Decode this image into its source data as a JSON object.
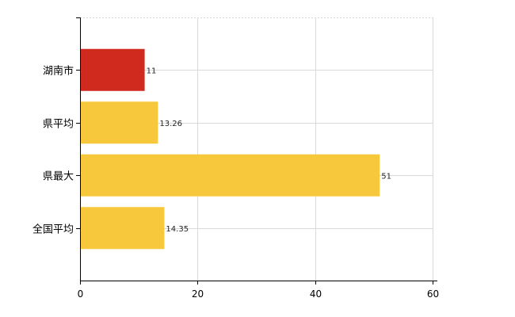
{
  "chart_data": {
    "type": "bar",
    "orientation": "horizontal",
    "categories": [
      "湖南市",
      "県平均",
      "県最大",
      "全国平均"
    ],
    "values": [
      11,
      13.26,
      51,
      14.35
    ],
    "value_labels": [
      "11",
      "13.26",
      "51",
      "14.35"
    ],
    "xlim": [
      0,
      60
    ],
    "x_ticks": [
      0,
      20,
      40,
      60
    ],
    "x_tick_labels": [
      "0",
      "20",
      "40",
      "60"
    ],
    "grid": true,
    "colors": {
      "highlight": "#d02a1e",
      "default": "#f8c83c",
      "grid": "#d9d9d9"
    },
    "highlight_index": 0
  }
}
